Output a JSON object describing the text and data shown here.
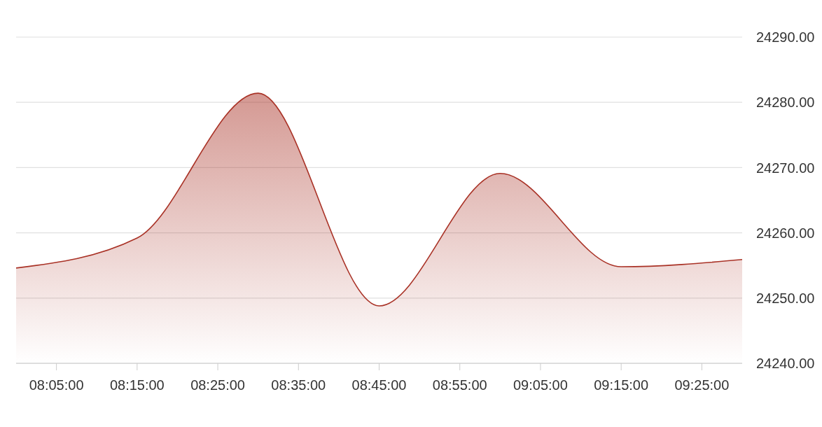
{
  "chart_data": {
    "type": "area",
    "x": [
      8,
      8.25,
      8.5,
      8.75,
      9,
      9.25,
      9.5
    ],
    "values": [
      24254.6,
      24259.2,
      24281.4,
      24248.8,
      24269.1,
      24254.8,
      24255.9
    ],
    "color": "#a93226",
    "xlim": [
      8,
      9.5
    ],
    "xticks": [
      {
        "value": 8.083333,
        "label": "08:05:00"
      },
      {
        "value": 8.25,
        "label": "08:15:00"
      },
      {
        "value": 8.416667,
        "label": "08:25:00"
      },
      {
        "value": 8.583333,
        "label": "08:35:00"
      },
      {
        "value": 8.75,
        "label": "08:45:00"
      },
      {
        "value": 8.916667,
        "label": "08:55:00"
      },
      {
        "value": 9.083333,
        "label": "09:05:00"
      },
      {
        "value": 9.25,
        "label": "09:15:00"
      },
      {
        "value": 9.416667,
        "label": "09:25:00"
      }
    ],
    "ylim": [
      24240,
      24290
    ],
    "yticks": [
      {
        "value": 24240,
        "label": "24240.00"
      },
      {
        "value": 24250,
        "label": "24250.00"
      },
      {
        "value": 24260,
        "label": "24260.00"
      },
      {
        "value": 24270,
        "label": "24270.00"
      },
      {
        "value": 24280,
        "label": "24280.00"
      },
      {
        "value": 24290,
        "label": "24290.00"
      }
    ],
    "grid": "y"
  }
}
